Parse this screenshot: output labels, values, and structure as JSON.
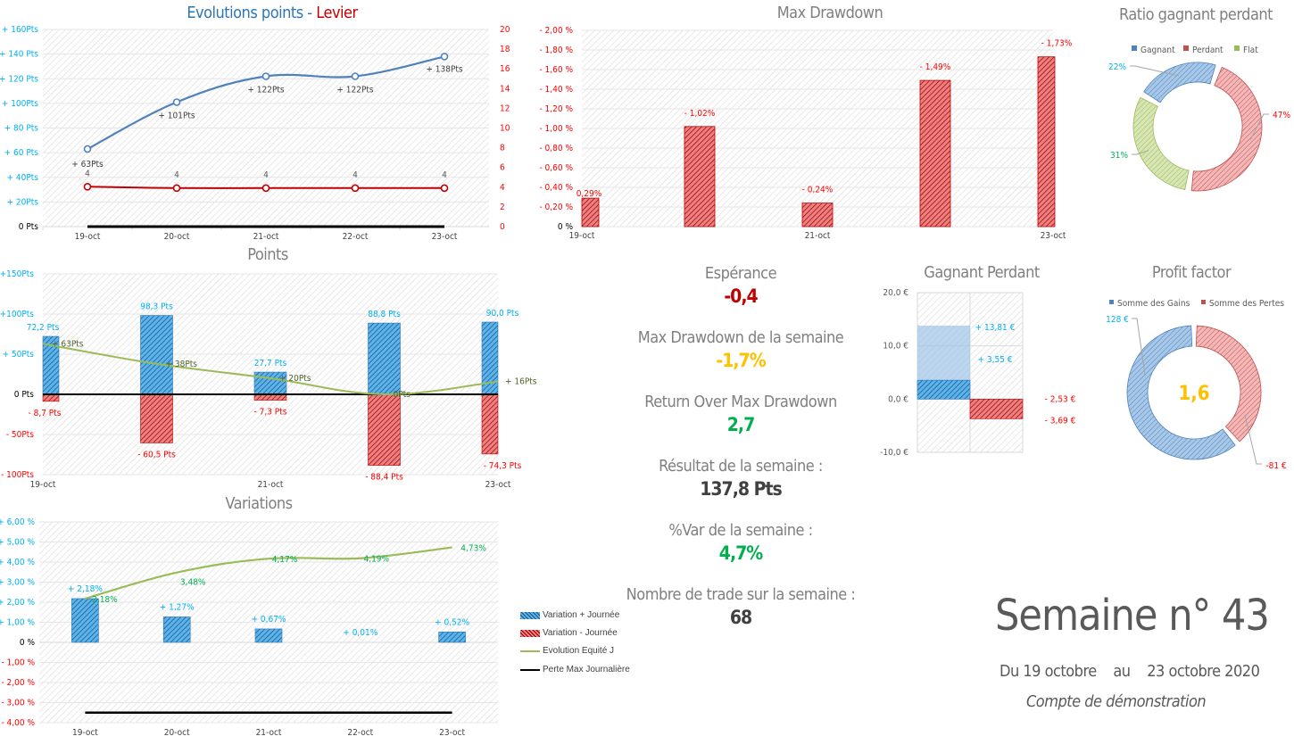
{
  "colors": {
    "blue_axis": "#00b0f0",
    "red_axis": "#ff0000",
    "blue_line": "#4f81bd",
    "red_line": "#c00000",
    "green_line": "#9bbb59",
    "green_text": "#00b050",
    "yellow": "#ffc000",
    "grey": "#7f7f7f",
    "dark": "#404040"
  },
  "header": {
    "title_main": "Semaine n° 43",
    "date_from": "Du 19 octobre",
    "date_sep": "au",
    "date_to": "23 octobre 2020",
    "account": "Compte de démonstration"
  },
  "kpis": [
    {
      "label": "Espérance",
      "value": "-0,4",
      "color": "#c00000"
    },
    {
      "label": "Max Drawdown de la semaine",
      "value": "-1,7%",
      "color": "#ffc000"
    },
    {
      "label": "Return Over Max Drawdown",
      "value": "2,7",
      "color": "#00b050"
    },
    {
      "label": "Résultat de la semaine :",
      "value": "137,8 Pts",
      "color": "#404040"
    },
    {
      "label": "%Var de la semaine :",
      "value": "4,7%",
      "color": "#00b050"
    },
    {
      "label": "Nombre de trade sur la semaine :",
      "value": "68",
      "color": "#404040"
    }
  ],
  "chart_data": [
    {
      "id": "evolution",
      "type": "line",
      "title_part1": "Evolutions points",
      "title_sep": " - ",
      "title_part2": "Levier",
      "categories": [
        "19-oct",
        "20-oct",
        "21-oct",
        "22-oct",
        "23-oct"
      ],
      "yticks_left": [
        "0 Pts",
        "+ 20Pts",
        "+ 40Pts",
        "+ 60 Pts",
        "+ 80 Pts",
        "+ 100Pts",
        "+ 120 Pts",
        "+ 140 Pts",
        "+ 160Pts"
      ],
      "ylim_left": [
        0,
        160
      ],
      "yticks_right": [
        "0",
        "2",
        "4",
        "6",
        "8",
        "10",
        "12",
        "14",
        "16",
        "18",
        "20"
      ],
      "ylim_right": [
        0,
        20
      ],
      "series": [
        {
          "name": "Points",
          "axis": "left",
          "values": [
            63,
            101,
            122,
            122,
            138
          ],
          "labels": [
            "+ 63Pts",
            "+ 101Pts",
            "+ 122Pts",
            "+ 122Pts",
            "+ 138Pts"
          ]
        },
        {
          "name": "Levier",
          "axis": "right",
          "values": [
            4,
            4,
            4,
            4,
            4
          ],
          "labels": [
            "4",
            "4",
            "4",
            "4",
            "4"
          ]
        },
        {
          "name": "Baseline",
          "axis": "left",
          "values": [
            0,
            0,
            0,
            0,
            0
          ]
        }
      ]
    },
    {
      "id": "drawdown",
      "type": "bar",
      "title": "Max Drawdown",
      "categories": [
        "19-oct",
        "20-oct",
        "21-oct",
        "22-oct",
        "23-oct"
      ],
      "xtick_labels": [
        "19-oct",
        "",
        "21-oct",
        "",
        "23-oct"
      ],
      "values": [
        0.29,
        1.02,
        0.24,
        1.49,
        1.73
      ],
      "labels": [
        "0,29%",
        "- 1,02%",
        "- 0,24%",
        "- 1,49%",
        "- 1,73%"
      ],
      "yticks": [
        "0 %",
        "- 0,20 %",
        "- 0,40 %",
        "- 0,60 %",
        "- 0,80 %",
        "- 1,00 %",
        "- 1,20 %",
        "- 1,40 %",
        "- 1,60 %",
        "- 1,80 %",
        "- 2,00 %"
      ],
      "ylim": [
        0,
        2
      ]
    },
    {
      "id": "ratio",
      "type": "pie",
      "title": "Ratio gagnant perdant",
      "legend": [
        "Gagnant",
        "Perdant",
        "Flat"
      ],
      "values": [
        22,
        47,
        31
      ],
      "labels": [
        "22%",
        "47%",
        "31%"
      ]
    },
    {
      "id": "points",
      "type": "bar",
      "title": "Points",
      "categories": [
        "19-oct",
        "20-oct",
        "21-oct",
        "22-oct",
        "23-oct"
      ],
      "xtick_labels": [
        "19-oct",
        "",
        "21-oct",
        "",
        "23-oct"
      ],
      "yticks": [
        "- 100Pts",
        "- 50Pts",
        "0 Pts",
        "+ 50Pts",
        "+100Pts",
        "+150Pts"
      ],
      "ylim": [
        -100,
        150
      ],
      "series": [
        {
          "name": "Gains",
          "values": [
            72.2,
            98.3,
            27.7,
            88.8,
            90.0
          ],
          "labels": [
            "72,2 Pts",
            "98,3 Pts",
            "27,7 Pts",
            "88,8 Pts",
            "90,0 Pts"
          ]
        },
        {
          "name": "Pertes",
          "values": [
            -8.7,
            -60.5,
            -7.3,
            -88.4,
            -74.3
          ],
          "labels": [
            "- 8,7 Pts",
            "- 60,5 Pts",
            "- 7,3 Pts",
            "- 88,4 Pts",
            "- 74,3 Pts"
          ]
        },
        {
          "name": "Net",
          "values": [
            63,
            38,
            20,
            0,
            16
          ],
          "labels": [
            "+ 63Pts",
            "+ 38Pts",
            "+ 20Pts",
            "0Pts",
            "+ 16Pts"
          ]
        }
      ]
    },
    {
      "id": "variations",
      "type": "bar",
      "title": "Variations",
      "categories": [
        "19-oct",
        "20-oct",
        "21-oct",
        "22-oct",
        "23-oct"
      ],
      "yticks": [
        "- 4,00 %",
        "- 3,00 %",
        "- 2,00 %",
        "- 1,00 %",
        "0 %",
        "+ 1,00 %",
        "+ 2,00 %",
        "+ 3,00 %",
        "+ 4,00 %",
        "+ 5,00 %",
        "+ 6,00 %"
      ],
      "ylim": [
        -4,
        6
      ],
      "series": [
        {
          "name": "Variation + Journée",
          "values": [
            2.18,
            1.27,
            0.67,
            0.01,
            0.52
          ],
          "labels": [
            "+ 2,18%",
            "+ 1,27%",
            "+ 0,67%",
            "+ 0,01%",
            "+ 0,52%"
          ]
        },
        {
          "name": "Variation - Journée",
          "values": [
            0,
            0,
            0,
            0,
            0
          ]
        },
        {
          "name": "Evolution  Equité J",
          "values": [
            2.18,
            3.48,
            4.17,
            4.19,
            4.73
          ],
          "labels": [
            "2,18%",
            "3,48%",
            "4,17%",
            "4,19%",
            "4,73%"
          ]
        },
        {
          "name": "Perte Max Journalière",
          "values": [
            -3.5,
            -3.5,
            -3.5,
            -3.5,
            -3.5
          ]
        }
      ]
    },
    {
      "id": "gagnant_perdant",
      "type": "bar",
      "title": "Gagnant Perdant",
      "yticks": [
        "-10,0 €",
        "0,0 €",
        "10,0 €",
        "20,0 €"
      ],
      "ylim": [
        -10,
        20
      ],
      "series": [
        {
          "name": "Gain max",
          "values": [
            13.81
          ],
          "labels": [
            "+ 13,81 €"
          ]
        },
        {
          "name": "Gain moyen",
          "values": [
            3.55
          ],
          "labels": [
            "+ 3,55 €"
          ]
        },
        {
          "name": "Perte moyenne",
          "values": [
            -2.53
          ],
          "labels": [
            "- 2,53 €"
          ]
        },
        {
          "name": "Perte max",
          "values": [
            -3.69
          ],
          "labels": [
            "- 3,69 €"
          ]
        }
      ]
    },
    {
      "id": "profit_factor",
      "type": "pie",
      "title": "Profit factor",
      "legend": [
        "Somme des Gains",
        "Somme des Pertes"
      ],
      "values": [
        128,
        81
      ],
      "labels": [
        "128 €",
        "-81 €"
      ],
      "center_label": "1,6"
    }
  ]
}
